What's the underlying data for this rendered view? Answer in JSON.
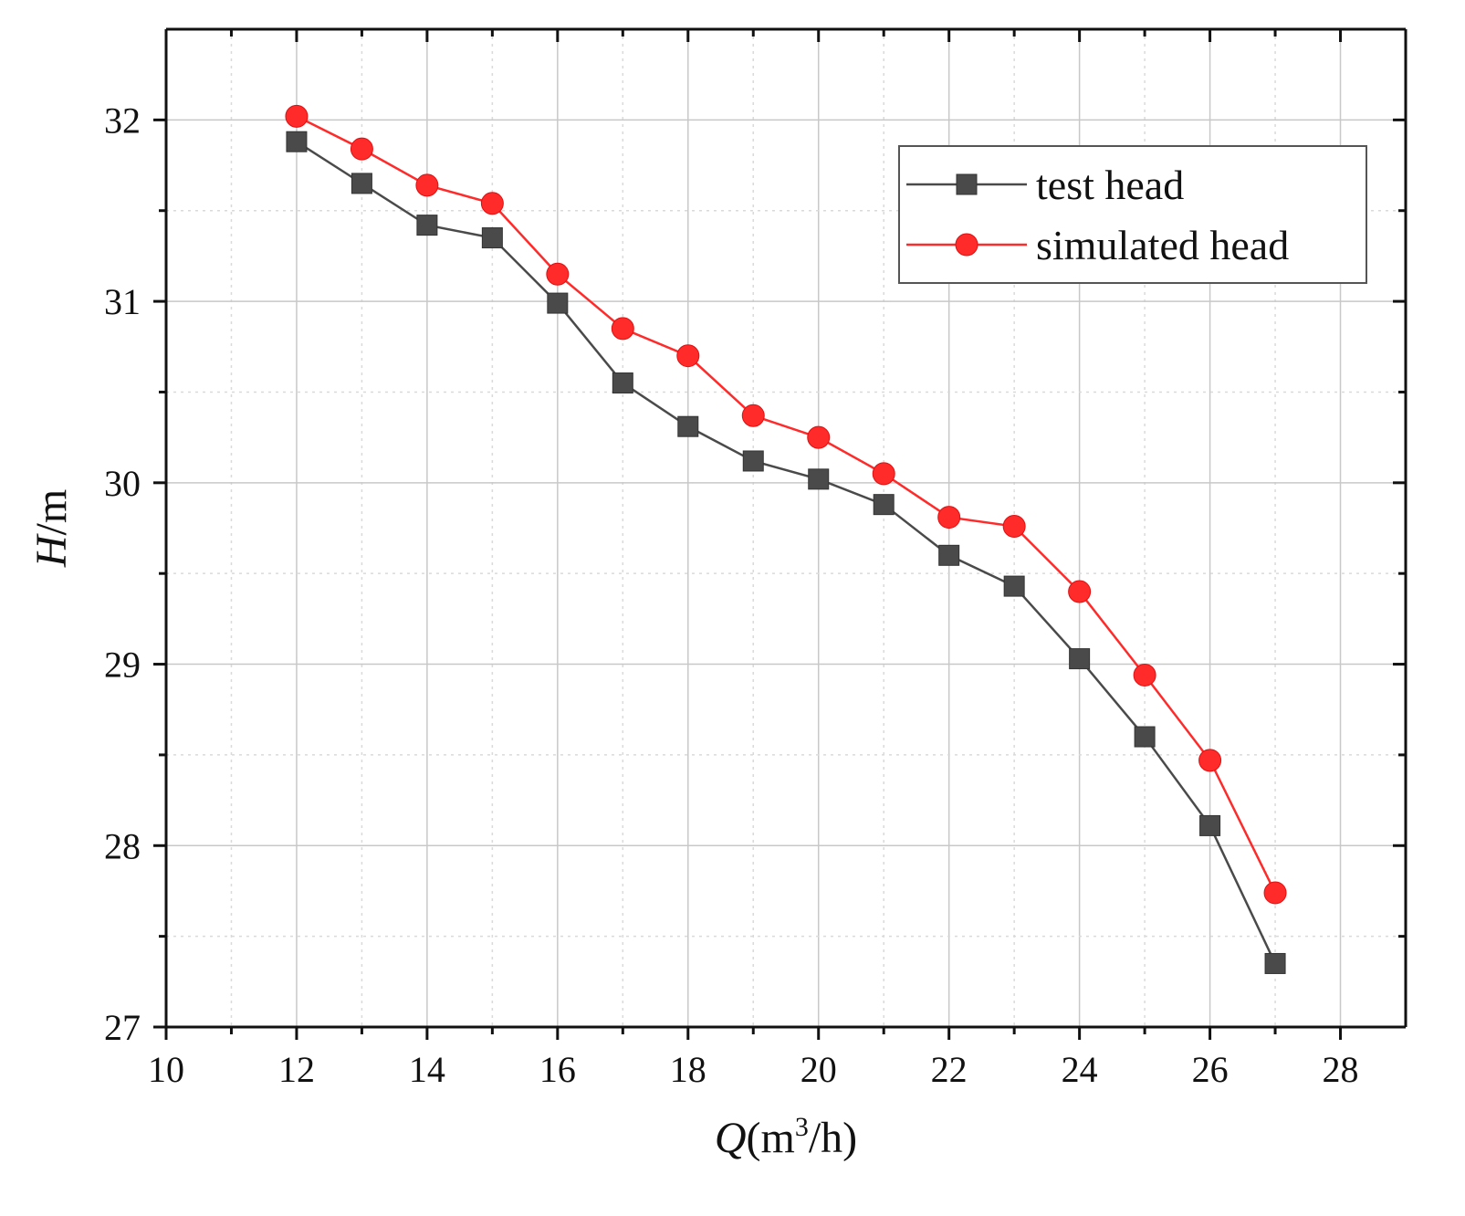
{
  "chart_data": {
    "type": "line",
    "title": "",
    "xlabel": {
      "symbol": "Q",
      "prefix": "(m",
      "sup": "3",
      "suffix": "/h)"
    },
    "ylabel": {
      "symbol": "H",
      "suffix": "/m"
    },
    "xlim": [
      10,
      29
    ],
    "ylim": [
      27,
      32.5
    ],
    "x_ticks": [
      10,
      12,
      14,
      16,
      18,
      20,
      22,
      24,
      26,
      28
    ],
    "y_ticks": [
      27,
      28,
      29,
      30,
      31,
      32
    ],
    "x_minor_ticks": [
      11,
      13,
      15,
      17,
      19,
      21,
      23,
      25,
      27
    ],
    "y_minor_ticks": [
      27.5,
      28.5,
      29.5,
      30.5,
      31.5
    ],
    "grid": true,
    "legend_position": "top-right",
    "x": [
      12,
      13,
      14,
      15,
      16,
      17,
      18,
      19,
      20,
      21,
      22,
      23,
      24,
      25,
      26,
      27
    ],
    "series": [
      {
        "name": "test head",
        "marker": "square",
        "color": "#4a4a4a",
        "values": [
          31.88,
          31.65,
          31.42,
          31.35,
          30.99,
          30.55,
          30.31,
          30.12,
          30.02,
          29.88,
          29.6,
          29.43,
          29.03,
          28.6,
          28.11,
          27.35
        ]
      },
      {
        "name": "simulated head",
        "marker": "circle",
        "color": "#ff2a2a",
        "values": [
          32.02,
          31.84,
          31.64,
          31.54,
          31.15,
          30.85,
          30.7,
          30.37,
          30.25,
          30.05,
          29.81,
          29.76,
          29.4,
          28.94,
          28.47,
          27.74
        ]
      }
    ]
  }
}
